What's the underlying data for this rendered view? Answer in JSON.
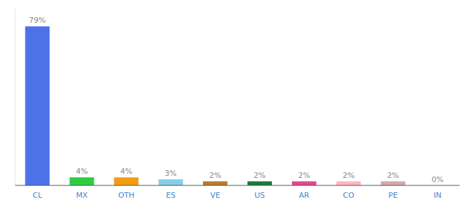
{
  "chart_data": {
    "type": "bar",
    "categories": [
      "CL",
      "MX",
      "OTH",
      "ES",
      "VE",
      "US",
      "AR",
      "CO",
      "PE",
      "IN"
    ],
    "values": [
      79,
      4,
      4,
      3,
      2,
      2,
      2,
      2,
      2,
      0
    ],
    "value_labels": [
      "79%",
      "4%",
      "4%",
      "3%",
      "2%",
      "2%",
      "2%",
      "2%",
      "2%",
      "0%"
    ],
    "colors": [
      "#4d72e8",
      "#2ecc40",
      "#f39c12",
      "#87ceeb",
      "#c0762a",
      "#1a7a3a",
      "#e84393",
      "#ffb6c1",
      "#d2a9a9",
      "#cccccc"
    ],
    "ylim": [
      0,
      88
    ],
    "data_labels": true,
    "tick_labels": "x",
    "grid": false
  }
}
